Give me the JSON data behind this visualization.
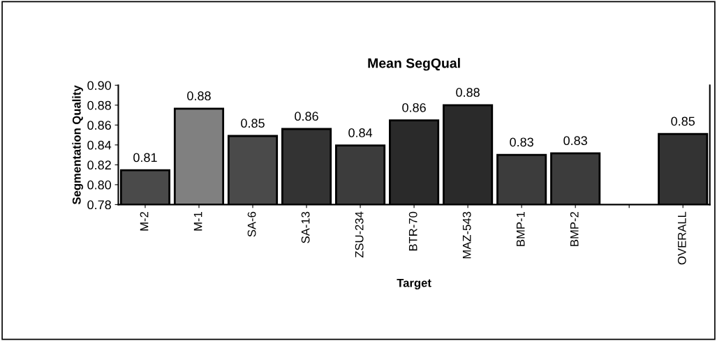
{
  "chart_data": {
    "type": "bar",
    "title": "Mean SegQual",
    "xlabel": "Target",
    "ylabel": "Segmentation Quality",
    "categories": [
      "M-2",
      "M-1",
      "SA-6",
      "SA-13",
      "ZSU-234",
      "BTR-70",
      "MAZ-543",
      "BMP-1",
      "BMP-2",
      null,
      "OVERALL"
    ],
    "values": [
      0.8145,
      0.8765,
      0.849,
      0.856,
      0.8394,
      0.8647,
      0.88,
      0.83,
      0.8315,
      null,
      0.851
    ],
    "value_labels": [
      "0.81",
      "0.88",
      "0.85",
      "0.86",
      "0.84",
      "0.86",
      "0.88",
      "0.83",
      "0.83",
      null,
      "0.85"
    ],
    "colors": [
      "#4a4a4a",
      "#808080",
      "#4a4a4a",
      "#333333",
      "#3c3c3c",
      "#2a2a2a",
      "#2a2a2a",
      "#3c3c3c",
      "#3c3c3c",
      "#3c3c3c",
      "#333333"
    ],
    "ylim": [
      0.78,
      0.9
    ],
    "yticks": [
      {
        "value": 0.78,
        "label": "0.78"
      },
      {
        "value": 0.8,
        "label": "0.80"
      },
      {
        "value": 0.82,
        "label": "0.82"
      },
      {
        "value": 0.84,
        "label": "0.84"
      },
      {
        "value": 0.86,
        "label": "0.86"
      },
      {
        "value": 0.88,
        "label": "0.88"
      },
      {
        "value": 0.9,
        "label": "0.90"
      }
    ],
    "grid": false,
    "legend": false
  }
}
